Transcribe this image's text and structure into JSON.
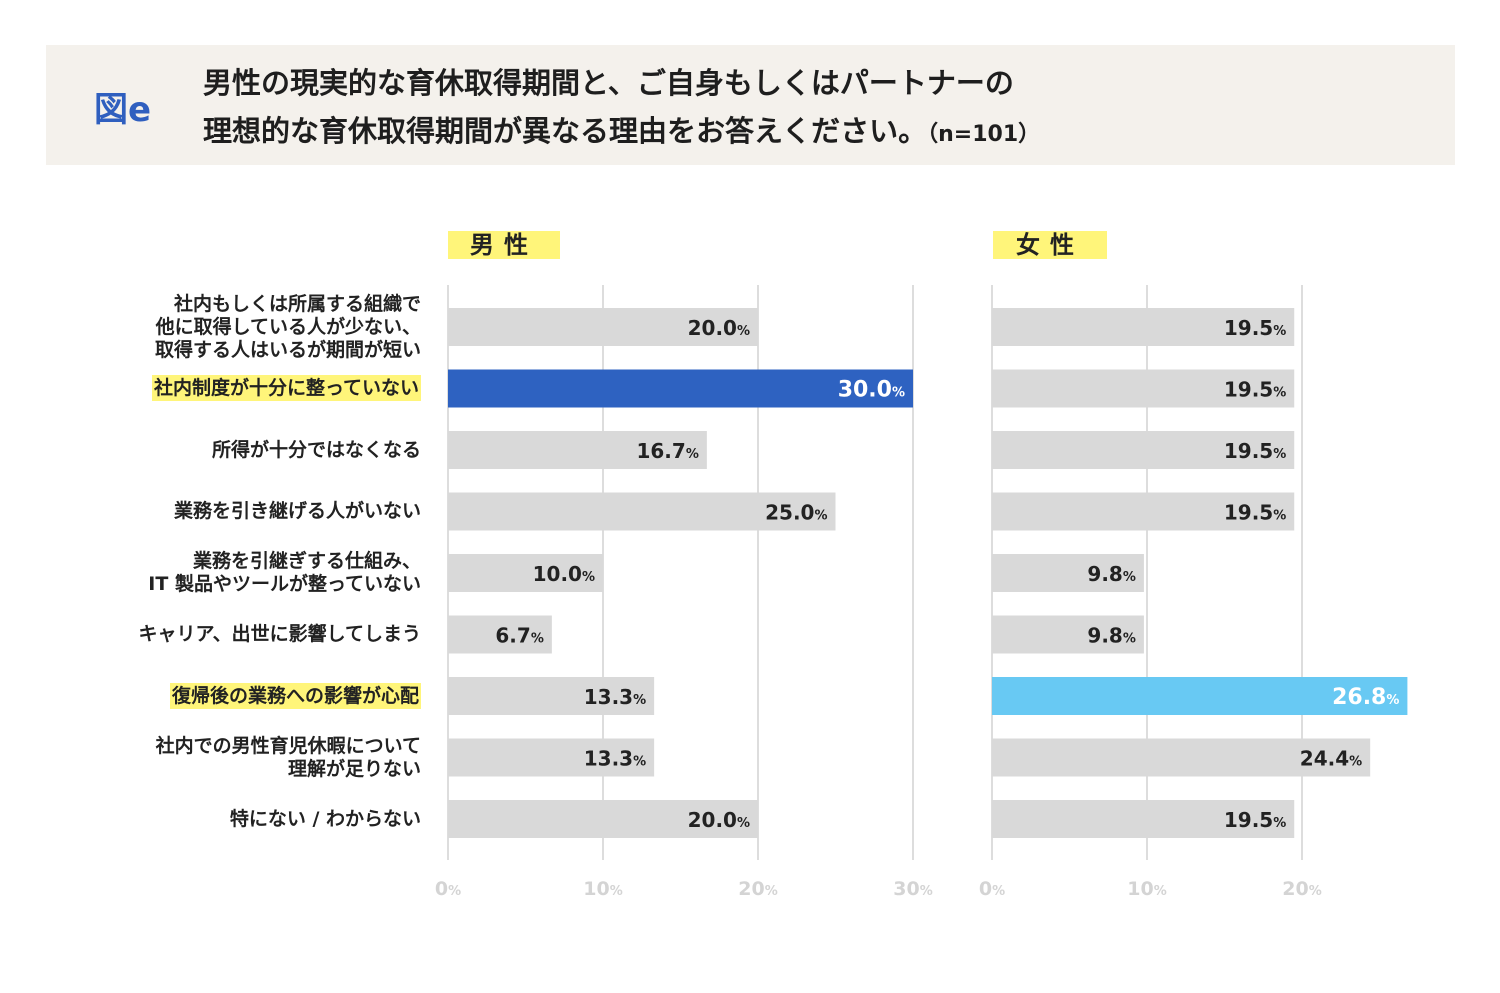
{
  "header": {
    "figure_label": "図e",
    "title_line1": "男性の現実的な育休取得期間と、ご自身もしくはパートナーの",
    "title_line2": "理想的な育休取得期間が異なる理由をお答えください。",
    "sample_size": "（n=101）"
  },
  "chart_data": {
    "type": "bar",
    "orientation": "horizontal",
    "categories": [
      "社内もしくは所属する組織で\n他に取得している人が少ない、\n取得する人はいるが期間が短い",
      "社内制度が十分に整っていない",
      "所得が十分ではなくなる",
      "業務を引き継げる人がいない",
      "業務を引継ぎする仕組み、\nIT 製品やツールが整っていない",
      "キャリア、出世に影響してしまう",
      "復帰後の業務への影響が心配",
      "社内での男性育児休暇について\n理解が足りない",
      "特にない / わからない"
    ],
    "highlighted_categories": [
      1,
      6
    ],
    "unit": "%",
    "series": [
      {
        "name": "男性",
        "values": [
          20.0,
          30.0,
          16.7,
          25.0,
          10.0,
          6.7,
          13.3,
          13.3,
          20.0
        ],
        "value_labels": [
          "20.0",
          "30.0",
          "16.7",
          "25.0",
          "10.0",
          "6.7",
          "13.3",
          "13.3",
          "20.0"
        ],
        "highlight_index": 1,
        "color": "#d9d9d9",
        "highlight_color": "#2e62c1",
        "xlim": [
          0,
          30
        ],
        "ticks": [
          "0",
          "10",
          "20",
          "30"
        ]
      },
      {
        "name": "女性",
        "values": [
          19.5,
          19.5,
          19.5,
          19.5,
          9.8,
          9.8,
          26.8,
          24.4,
          19.5
        ],
        "value_labels": [
          "19.5",
          "19.5",
          "19.5",
          "19.5",
          "9.8",
          "9.8",
          "26.8",
          "24.4",
          "19.5"
        ],
        "highlight_index": 6,
        "color": "#d9d9d9",
        "highlight_color": "#68c9f3",
        "xlim": [
          0,
          20
        ],
        "ticks": [
          "0",
          "10",
          "20"
        ]
      }
    ]
  }
}
